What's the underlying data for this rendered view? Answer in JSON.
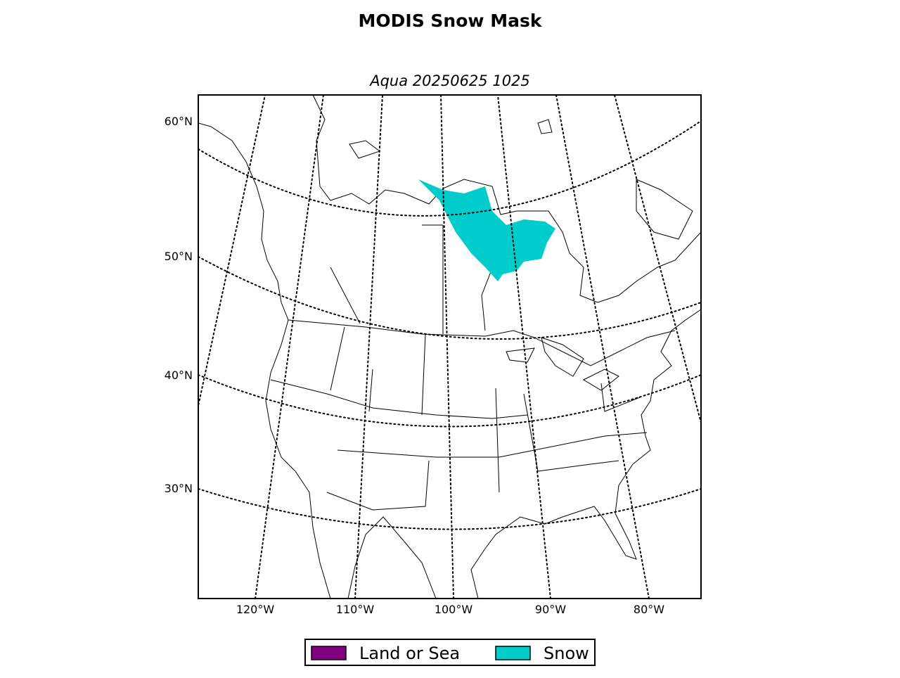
{
  "title": "MODIS Snow Mask",
  "subtitle": "Aqua 20250625 1025",
  "latitude_labels": [
    "60°N",
    "50°N",
    "40°N",
    "30°N"
  ],
  "longitude_labels": [
    "120°W",
    "110°W",
    "100°W",
    "90°W",
    "80°W"
  ],
  "legend": [
    {
      "label": "Land or Sea",
      "color": "#800080"
    },
    {
      "label": "Snow",
      "color": "#00cccc"
    }
  ]
}
